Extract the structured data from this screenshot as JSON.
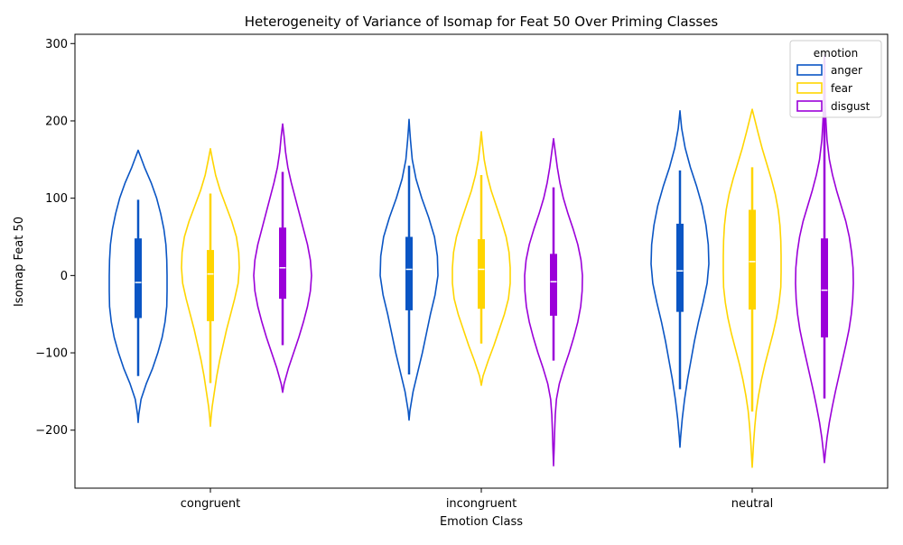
{
  "chart_data": {
    "type": "violin",
    "title": "Heterogeneity of Variance of Isomap for Feat 50 Over Priming Classes",
    "xlabel": "Emotion Class",
    "ylabel": "Isomap Feat 50",
    "categories": [
      "congruent",
      "incongruent",
      "neutral"
    ],
    "ylim": [
      -275,
      312
    ],
    "yticks": [
      -200,
      -100,
      0,
      100,
      200,
      300
    ],
    "legend": {
      "title": "emotion",
      "position": "top-right"
    },
    "series": [
      {
        "name": "anger",
        "color": "#0a55c4",
        "groups": [
          {
            "category": "congruent",
            "min": -190,
            "max": 162,
            "q1": -55,
            "median": -9,
            "q3": 48,
            "whisker_low": -130,
            "whisker_high": 98,
            "profile": [
              [
                -190,
                0.0
              ],
              [
                -180,
                0.02
              ],
              [
                -160,
                0.1
              ],
              [
                -140,
                0.28
              ],
              [
                -120,
                0.5
              ],
              [
                -100,
                0.68
              ],
              [
                -80,
                0.83
              ],
              [
                -60,
                0.93
              ],
              [
                -40,
                0.99
              ],
              [
                -20,
                1.0
              ],
              [
                0,
                1.0
              ],
              [
                20,
                0.99
              ],
              [
                40,
                0.96
              ],
              [
                60,
                0.89
              ],
              [
                80,
                0.78
              ],
              [
                100,
                0.64
              ],
              [
                120,
                0.45
              ],
              [
                140,
                0.22
              ],
              [
                155,
                0.07
              ],
              [
                162,
                0.0
              ]
            ]
          },
          {
            "category": "incongruent",
            "min": -187,
            "max": 202,
            "q1": -45,
            "median": 8,
            "q3": 50,
            "whisker_low": -128,
            "whisker_high": 142,
            "profile": [
              [
                -187,
                0.0
              ],
              [
                -175,
                0.03
              ],
              [
                -150,
                0.14
              ],
              [
                -125,
                0.3
              ],
              [
                -100,
                0.46
              ],
              [
                -75,
                0.6
              ],
              [
                -50,
                0.74
              ],
              [
                -25,
                0.9
              ],
              [
                0,
                1.0
              ],
              [
                25,
                0.98
              ],
              [
                50,
                0.88
              ],
              [
                75,
                0.68
              ],
              [
                100,
                0.44
              ],
              [
                125,
                0.24
              ],
              [
                150,
                0.11
              ],
              [
                175,
                0.05
              ],
              [
                190,
                0.02
              ],
              [
                202,
                0.0
              ]
            ]
          },
          {
            "category": "neutral",
            "min": -222,
            "max": 213,
            "q1": -47,
            "median": 6,
            "q3": 67,
            "whisker_low": -147,
            "whisker_high": 136,
            "profile": [
              [
                -222,
                0.0
              ],
              [
                -210,
                0.02
              ],
              [
                -185,
                0.08
              ],
              [
                -160,
                0.16
              ],
              [
                -135,
                0.26
              ],
              [
                -110,
                0.38
              ],
              [
                -85,
                0.5
              ],
              [
                -60,
                0.64
              ],
              [
                -35,
                0.8
              ],
              [
                -10,
                0.94
              ],
              [
                15,
                1.0
              ],
              [
                40,
                0.98
              ],
              [
                65,
                0.9
              ],
              [
                90,
                0.77
              ],
              [
                115,
                0.58
              ],
              [
                140,
                0.36
              ],
              [
                165,
                0.18
              ],
              [
                190,
                0.06
              ],
              [
                205,
                0.02
              ],
              [
                213,
                0.0
              ]
            ]
          }
        ]
      },
      {
        "name": "fear",
        "color": "#ffd500",
        "groups": [
          {
            "category": "congruent",
            "min": -195,
            "max": 164,
            "q1": -59,
            "median": 2,
            "q3": 33,
            "whisker_low": -139,
            "whisker_high": 106,
            "profile": [
              [
                -195,
                0.0
              ],
              [
                -185,
                0.02
              ],
              [
                -170,
                0.06
              ],
              [
                -150,
                0.14
              ],
              [
                -130,
                0.22
              ],
              [
                -110,
                0.32
              ],
              [
                -90,
                0.44
              ],
              [
                -70,
                0.56
              ],
              [
                -50,
                0.7
              ],
              [
                -30,
                0.84
              ],
              [
                -10,
                0.96
              ],
              [
                10,
                1.0
              ],
              [
                30,
                0.98
              ],
              [
                50,
                0.9
              ],
              [
                70,
                0.74
              ],
              [
                90,
                0.54
              ],
              [
                110,
                0.34
              ],
              [
                130,
                0.18
              ],
              [
                150,
                0.07
              ],
              [
                164,
                0.0
              ]
            ]
          },
          {
            "category": "incongruent",
            "min": -142,
            "max": 186,
            "q1": -43,
            "median": 8,
            "q3": 47,
            "whisker_low": -88,
            "whisker_high": 130,
            "profile": [
              [
                -142,
                0.0
              ],
              [
                -130,
                0.06
              ],
              [
                -110,
                0.24
              ],
              [
                -90,
                0.44
              ],
              [
                -70,
                0.62
              ],
              [
                -50,
                0.8
              ],
              [
                -30,
                0.94
              ],
              [
                -10,
                1.0
              ],
              [
                10,
                1.0
              ],
              [
                30,
                0.96
              ],
              [
                50,
                0.86
              ],
              [
                70,
                0.7
              ],
              [
                90,
                0.52
              ],
              [
                110,
                0.34
              ],
              [
                130,
                0.2
              ],
              [
                150,
                0.1
              ],
              [
                170,
                0.04
              ],
              [
                186,
                0.0
              ]
            ]
          },
          {
            "category": "neutral",
            "min": -248,
            "max": 215,
            "q1": -44,
            "median": 18,
            "q3": 85,
            "whisker_low": -176,
            "whisker_high": 140,
            "profile": [
              [
                -248,
                0.0
              ],
              [
                -235,
                0.02
              ],
              [
                -215,
                0.05
              ],
              [
                -195,
                0.09
              ],
              [
                -175,
                0.14
              ],
              [
                -155,
                0.22
              ],
              [
                -135,
                0.32
              ],
              [
                -115,
                0.44
              ],
              [
                -95,
                0.58
              ],
              [
                -75,
                0.72
              ],
              [
                -55,
                0.84
              ],
              [
                -35,
                0.93
              ],
              [
                -15,
                0.99
              ],
              [
                5,
                1.0
              ],
              [
                25,
                1.0
              ],
              [
                45,
                0.99
              ],
              [
                65,
                0.96
              ],
              [
                85,
                0.9
              ],
              [
                105,
                0.8
              ],
              [
                125,
                0.66
              ],
              [
                145,
                0.5
              ],
              [
                165,
                0.34
              ],
              [
                185,
                0.2
              ],
              [
                200,
                0.1
              ],
              [
                215,
                0.0
              ]
            ]
          }
        ]
      },
      {
        "name": "disgust",
        "color": "#9b00d9",
        "groups": [
          {
            "category": "congruent",
            "min": -151,
            "max": 196,
            "q1": -30,
            "median": 10,
            "q3": 62,
            "whisker_low": -90,
            "whisker_high": 134,
            "profile": [
              [
                -151,
                0.0
              ],
              [
                -140,
                0.05
              ],
              [
                -120,
                0.2
              ],
              [
                -100,
                0.38
              ],
              [
                -80,
                0.56
              ],
              [
                -60,
                0.72
              ],
              [
                -40,
                0.86
              ],
              [
                -20,
                0.96
              ],
              [
                0,
                1.0
              ],
              [
                20,
                0.96
              ],
              [
                40,
                0.86
              ],
              [
                60,
                0.72
              ],
              [
                80,
                0.58
              ],
              [
                100,
                0.44
              ],
              [
                120,
                0.3
              ],
              [
                140,
                0.18
              ],
              [
                160,
                0.1
              ],
              [
                180,
                0.05
              ],
              [
                196,
                0.0
              ]
            ]
          },
          {
            "category": "incongruent",
            "min": -246,
            "max": 177,
            "q1": -52,
            "median": -8,
            "q3": 28,
            "whisker_low": -110,
            "whisker_high": 114,
            "profile": [
              [
                -246,
                0.0
              ],
              [
                -225,
                0.02
              ],
              [
                -200,
                0.04
              ],
              [
                -180,
                0.06
              ],
              [
                -160,
                0.1
              ],
              [
                -140,
                0.2
              ],
              [
                -120,
                0.36
              ],
              [
                -100,
                0.54
              ],
              [
                -80,
                0.7
              ],
              [
                -60,
                0.84
              ],
              [
                -40,
                0.94
              ],
              [
                -20,
                0.99
              ],
              [
                0,
                1.0
              ],
              [
                20,
                0.95
              ],
              [
                40,
                0.84
              ],
              [
                60,
                0.68
              ],
              [
                80,
                0.5
              ],
              [
                100,
                0.34
              ],
              [
                120,
                0.22
              ],
              [
                140,
                0.13
              ],
              [
                160,
                0.06
              ],
              [
                177,
                0.0
              ]
            ]
          },
          {
            "category": "neutral",
            "min": -242,
            "max": 285,
            "q1": -80,
            "median": -19,
            "q3": 48,
            "whisker_low": -159,
            "whisker_high": 278,
            "profile": [
              [
                -242,
                0.0
              ],
              [
                -230,
                0.03
              ],
              [
                -210,
                0.09
              ],
              [
                -190,
                0.17
              ],
              [
                -170,
                0.27
              ],
              [
                -150,
                0.38
              ],
              [
                -130,
                0.5
              ],
              [
                -110,
                0.62
              ],
              [
                -90,
                0.74
              ],
              [
                -70,
                0.85
              ],
              [
                -50,
                0.93
              ],
              [
                -30,
                0.98
              ],
              [
                -10,
                1.0
              ],
              [
                10,
                0.99
              ],
              [
                30,
                0.94
              ],
              [
                50,
                0.86
              ],
              [
                70,
                0.74
              ],
              [
                90,
                0.58
              ],
              [
                110,
                0.42
              ],
              [
                130,
                0.28
              ],
              [
                150,
                0.17
              ],
              [
                175,
                0.09
              ],
              [
                200,
                0.05
              ],
              [
                230,
                0.02
              ],
              [
                260,
                0.01
              ],
              [
                285,
                0.0
              ]
            ]
          }
        ]
      }
    ]
  }
}
